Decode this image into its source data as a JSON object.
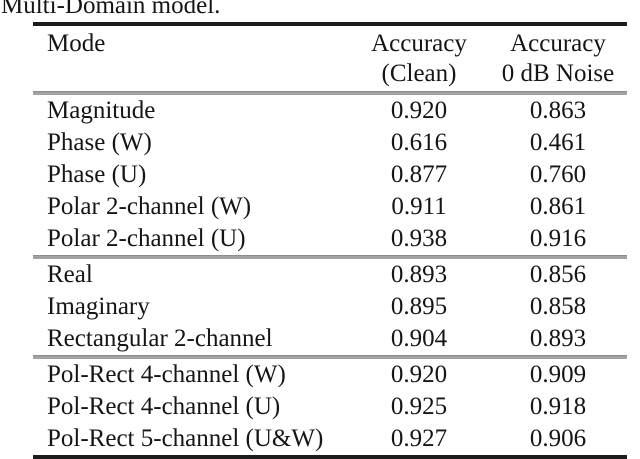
{
  "caption": "Multi-Domain model.",
  "table": {
    "header": {
      "mode_label": "Mode",
      "clean_line1": "Accuracy",
      "clean_line2": "(Clean)",
      "noise_line1": "Accuracy",
      "noise_line2": "0 dB Noise"
    },
    "rows": [
      {
        "mode": "Magnitude",
        "clean": "0.920",
        "noise": "0.863"
      },
      {
        "mode": "Phase (W)",
        "clean": "0.616",
        "noise": "0.461"
      },
      {
        "mode": "Phase (U)",
        "clean": "0.877",
        "noise": "0.760"
      },
      {
        "mode": "Polar 2-channel (W)",
        "clean": "0.911",
        "noise": "0.861"
      },
      {
        "mode": "Polar 2-channel (U)",
        "clean": "0.938",
        "noise": "0.916"
      },
      {
        "mode": "Real",
        "clean": "0.893",
        "noise": "0.856"
      },
      {
        "mode": "Imaginary",
        "clean": "0.895",
        "noise": "0.858"
      },
      {
        "mode": "Rectangular 2-channel",
        "clean": "0.904",
        "noise": "0.893"
      },
      {
        "mode": "Pol-Rect 4-channel (W)",
        "clean": "0.920",
        "noise": "0.909"
      },
      {
        "mode": "Pol-Rect 4-channel (U)",
        "clean": "0.925",
        "noise": "0.918"
      },
      {
        "mode": "Pol-Rect 5-channel (U&W)",
        "clean": "0.927",
        "noise": "0.906"
      }
    ]
  },
  "chart_data": {
    "type": "table",
    "title": "Multi-Domain model.",
    "columns": [
      "Mode",
      "Accuracy (Clean)",
      "Accuracy 0 dB Noise"
    ],
    "rows": [
      [
        "Magnitude",
        0.92,
        0.863
      ],
      [
        "Phase (W)",
        0.616,
        0.461
      ],
      [
        "Phase (U)",
        0.877,
        0.76
      ],
      [
        "Polar 2-channel (W)",
        0.911,
        0.861
      ],
      [
        "Polar 2-channel (U)",
        0.938,
        0.916
      ],
      [
        "Real",
        0.893,
        0.856
      ],
      [
        "Imaginary",
        0.895,
        0.858
      ],
      [
        "Rectangular 2-channel",
        0.904,
        0.893
      ],
      [
        "Pol-Rect 4-channel (W)",
        0.92,
        0.909
      ],
      [
        "Pol-Rect 4-channel (U)",
        0.925,
        0.918
      ],
      [
        "Pol-Rect 5-channel (U&W)",
        0.927,
        0.906
      ]
    ],
    "groups": [
      [
        0,
        4
      ],
      [
        5,
        7
      ],
      [
        8,
        10
      ]
    ]
  }
}
